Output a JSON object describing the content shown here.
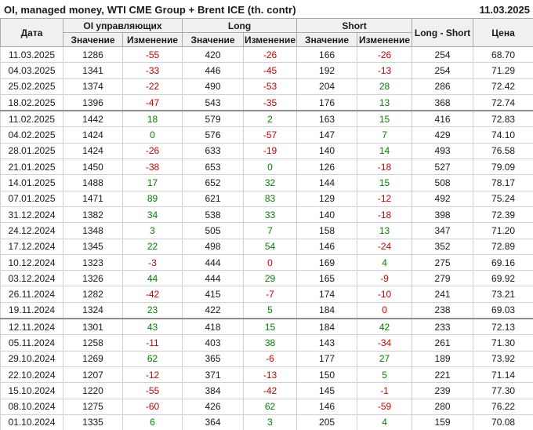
{
  "title": "OI, managed money, WTI CME Group + Brent ICE (th. contr)",
  "report_date": "11.03.2025",
  "headers": {
    "date": "Дата",
    "oi_group": "OI управляющих",
    "long_group": "Long",
    "short_group": "Short",
    "long_short": "Long - Short",
    "price": "Цена",
    "value": "Значение",
    "change": "Изменение"
  },
  "colors": {
    "positive": "#008000",
    "negative": "#cc0000",
    "header_bg": "#f0f0f0"
  },
  "chart_data": {
    "type": "table",
    "title": "OI, managed money, WTI CME Group + Brent ICE (th. contr)",
    "as_of_date": "11.03.2025",
    "column_groups": [
      "Дата",
      "OI управляющих",
      "Long",
      "Short",
      "Long - Short",
      "Цена"
    ],
    "columns": [
      "Дата",
      "OI Значение",
      "OI Изменение",
      "Long Значение",
      "Long Изменение",
      "Short Значение",
      "Short Изменение",
      "Long - Short",
      "Цена"
    ],
    "rows": [
      {
        "date": "11.03.2025",
        "oi": "1286",
        "oi_chg": {
          "v": "-55",
          "c": "neg"
        },
        "long": "420",
        "long_chg": {
          "v": "-26",
          "c": "neg"
        },
        "short": "166",
        "short_chg": {
          "v": "-26",
          "c": "neg"
        },
        "long_short": "254",
        "price": "68.70",
        "group_end": false
      },
      {
        "date": "04.03.2025",
        "oi": "1341",
        "oi_chg": {
          "v": "-33",
          "c": "neg"
        },
        "long": "446",
        "long_chg": {
          "v": "-45",
          "c": "neg"
        },
        "short": "192",
        "short_chg": {
          "v": "-13",
          "c": "neg"
        },
        "long_short": "254",
        "price": "71.29",
        "group_end": false
      },
      {
        "date": "25.02.2025",
        "oi": "1374",
        "oi_chg": {
          "v": "-22",
          "c": "neg"
        },
        "long": "490",
        "long_chg": {
          "v": "-53",
          "c": "neg"
        },
        "short": "204",
        "short_chg": {
          "v": "28",
          "c": "pos"
        },
        "long_short": "286",
        "price": "72.42",
        "group_end": false
      },
      {
        "date": "18.02.2025",
        "oi": "1396",
        "oi_chg": {
          "v": "-47",
          "c": "neg"
        },
        "long": "543",
        "long_chg": {
          "v": "-35",
          "c": "neg"
        },
        "short": "176",
        "short_chg": {
          "v": "13",
          "c": "pos"
        },
        "long_short": "368",
        "price": "72.74",
        "group_end": true
      },
      {
        "date": "11.02.2025",
        "oi": "1442",
        "oi_chg": {
          "v": "18",
          "c": "pos"
        },
        "long": "579",
        "long_chg": {
          "v": "2",
          "c": "pos"
        },
        "short": "163",
        "short_chg": {
          "v": "15",
          "c": "pos"
        },
        "long_short": "416",
        "price": "72.83",
        "group_end": false
      },
      {
        "date": "04.02.2025",
        "oi": "1424",
        "oi_chg": {
          "v": "0",
          "c": "pos"
        },
        "long": "576",
        "long_chg": {
          "v": "-57",
          "c": "neg"
        },
        "short": "147",
        "short_chg": {
          "v": "7",
          "c": "pos"
        },
        "long_short": "429",
        "price": "74.10",
        "group_end": false
      },
      {
        "date": "28.01.2025",
        "oi": "1424",
        "oi_chg": {
          "v": "-26",
          "c": "neg"
        },
        "long": "633",
        "long_chg": {
          "v": "-19",
          "c": "neg"
        },
        "short": "140",
        "short_chg": {
          "v": "14",
          "c": "pos"
        },
        "long_short": "493",
        "price": "76.58",
        "group_end": false
      },
      {
        "date": "21.01.2025",
        "oi": "1450",
        "oi_chg": {
          "v": "-38",
          "c": "neg"
        },
        "long": "653",
        "long_chg": {
          "v": "0",
          "c": "pos"
        },
        "short": "126",
        "short_chg": {
          "v": "-18",
          "c": "neg"
        },
        "long_short": "527",
        "price": "79.09",
        "group_end": false
      },
      {
        "date": "14.01.2025",
        "oi": "1488",
        "oi_chg": {
          "v": "17",
          "c": "pos"
        },
        "long": "652",
        "long_chg": {
          "v": "32",
          "c": "pos"
        },
        "short": "144",
        "short_chg": {
          "v": "15",
          "c": "pos"
        },
        "long_short": "508",
        "price": "78.17",
        "group_end": false
      },
      {
        "date": "07.01.2025",
        "oi": "1471",
        "oi_chg": {
          "v": "89",
          "c": "pos"
        },
        "long": "621",
        "long_chg": {
          "v": "83",
          "c": "pos"
        },
        "short": "129",
        "short_chg": {
          "v": "-12",
          "c": "neg"
        },
        "long_short": "492",
        "price": "75.24",
        "group_end": false
      },
      {
        "date": "31.12.2024",
        "oi": "1382",
        "oi_chg": {
          "v": "34",
          "c": "pos"
        },
        "long": "538",
        "long_chg": {
          "v": "33",
          "c": "pos"
        },
        "short": "140",
        "short_chg": {
          "v": "-18",
          "c": "neg"
        },
        "long_short": "398",
        "price": "72.39",
        "group_end": false
      },
      {
        "date": "24.12.2024",
        "oi": "1348",
        "oi_chg": {
          "v": "3",
          "c": "pos"
        },
        "long": "505",
        "long_chg": {
          "v": "7",
          "c": "pos"
        },
        "short": "158",
        "short_chg": {
          "v": "13",
          "c": "pos"
        },
        "long_short": "347",
        "price": "71.20",
        "group_end": false
      },
      {
        "date": "17.12.2024",
        "oi": "1345",
        "oi_chg": {
          "v": "22",
          "c": "pos"
        },
        "long": "498",
        "long_chg": {
          "v": "54",
          "c": "pos"
        },
        "short": "146",
        "short_chg": {
          "v": "-24",
          "c": "neg"
        },
        "long_short": "352",
        "price": "72.89",
        "group_end": false
      },
      {
        "date": "10.12.2024",
        "oi": "1323",
        "oi_chg": {
          "v": "-3",
          "c": "neg"
        },
        "long": "444",
        "long_chg": {
          "v": "0",
          "c": "neg"
        },
        "short": "169",
        "short_chg": {
          "v": "4",
          "c": "pos"
        },
        "long_short": "275",
        "price": "69.16",
        "group_end": false
      },
      {
        "date": "03.12.2024",
        "oi": "1326",
        "oi_chg": {
          "v": "44",
          "c": "pos"
        },
        "long": "444",
        "long_chg": {
          "v": "29",
          "c": "pos"
        },
        "short": "165",
        "short_chg": {
          "v": "-9",
          "c": "neg"
        },
        "long_short": "279",
        "price": "69.92",
        "group_end": false
      },
      {
        "date": "26.11.2024",
        "oi": "1282",
        "oi_chg": {
          "v": "-42",
          "c": "neg"
        },
        "long": "415",
        "long_chg": {
          "v": "-7",
          "c": "neg"
        },
        "short": "174",
        "short_chg": {
          "v": "-10",
          "c": "neg"
        },
        "long_short": "241",
        "price": "73.21",
        "group_end": false
      },
      {
        "date": "19.11.2024",
        "oi": "1324",
        "oi_chg": {
          "v": "23",
          "c": "pos"
        },
        "long": "422",
        "long_chg": {
          "v": "5",
          "c": "pos"
        },
        "short": "184",
        "short_chg": {
          "v": "0",
          "c": "neg"
        },
        "long_short": "238",
        "price": "69.03",
        "group_end": true
      },
      {
        "date": "12.11.2024",
        "oi": "1301",
        "oi_chg": {
          "v": "43",
          "c": "pos"
        },
        "long": "418",
        "long_chg": {
          "v": "15",
          "c": "pos"
        },
        "short": "184",
        "short_chg": {
          "v": "42",
          "c": "pos"
        },
        "long_short": "233",
        "price": "72.13",
        "group_end": false
      },
      {
        "date": "05.11.2024",
        "oi": "1258",
        "oi_chg": {
          "v": "-11",
          "c": "neg"
        },
        "long": "403",
        "long_chg": {
          "v": "38",
          "c": "pos"
        },
        "short": "143",
        "short_chg": {
          "v": "-34",
          "c": "neg"
        },
        "long_short": "261",
        "price": "71.30",
        "group_end": false
      },
      {
        "date": "29.10.2024",
        "oi": "1269",
        "oi_chg": {
          "v": "62",
          "c": "pos"
        },
        "long": "365",
        "long_chg": {
          "v": "-6",
          "c": "neg"
        },
        "short": "177",
        "short_chg": {
          "v": "27",
          "c": "pos"
        },
        "long_short": "189",
        "price": "73.92",
        "group_end": false
      },
      {
        "date": "22.10.2024",
        "oi": "1207",
        "oi_chg": {
          "v": "-12",
          "c": "neg"
        },
        "long": "371",
        "long_chg": {
          "v": "-13",
          "c": "neg"
        },
        "short": "150",
        "short_chg": {
          "v": "5",
          "c": "pos"
        },
        "long_short": "221",
        "price": "71.14",
        "group_end": false
      },
      {
        "date": "15.10.2024",
        "oi": "1220",
        "oi_chg": {
          "v": "-55",
          "c": "neg"
        },
        "long": "384",
        "long_chg": {
          "v": "-42",
          "c": "neg"
        },
        "short": "145",
        "short_chg": {
          "v": "-1",
          "c": "neg"
        },
        "long_short": "239",
        "price": "77.30",
        "group_end": false
      },
      {
        "date": "08.10.2024",
        "oi": "1275",
        "oi_chg": {
          "v": "-60",
          "c": "neg"
        },
        "long": "426",
        "long_chg": {
          "v": "62",
          "c": "pos"
        },
        "short": "146",
        "short_chg": {
          "v": "-59",
          "c": "neg"
        },
        "long_short": "280",
        "price": "76.22",
        "group_end": false
      },
      {
        "date": "01.10.2024",
        "oi": "1335",
        "oi_chg": {
          "v": "6",
          "c": "pos"
        },
        "long": "364",
        "long_chg": {
          "v": "3",
          "c": "pos"
        },
        "short": "205",
        "short_chg": {
          "v": "4",
          "c": "pos"
        },
        "long_short": "159",
        "price": "70.08",
        "group_end": false
      }
    ]
  }
}
